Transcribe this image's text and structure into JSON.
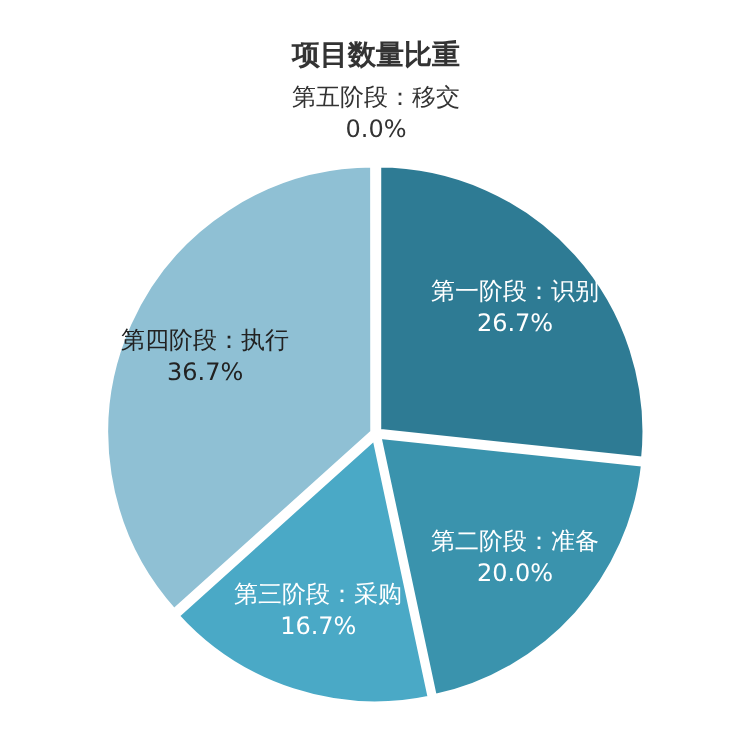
{
  "chart_data": {
    "type": "pie",
    "title": "项目数量比重",
    "categories": [
      "第一阶段：识别",
      "第二阶段：准备",
      "第三阶段：采购",
      "第四阶段：执行",
      "第五阶段：移交"
    ],
    "values": [
      26.7,
      20.0,
      16.7,
      36.7,
      0.0
    ],
    "value_labels": [
      "26.7%",
      "20.0%",
      "16.7%",
      "36.7%",
      "0.0%"
    ],
    "colors": [
      "#2e7b94",
      "#3a93ad",
      "#4aa9c6",
      "#8fc0d4",
      "#b5d7e4"
    ],
    "legend": false
  }
}
